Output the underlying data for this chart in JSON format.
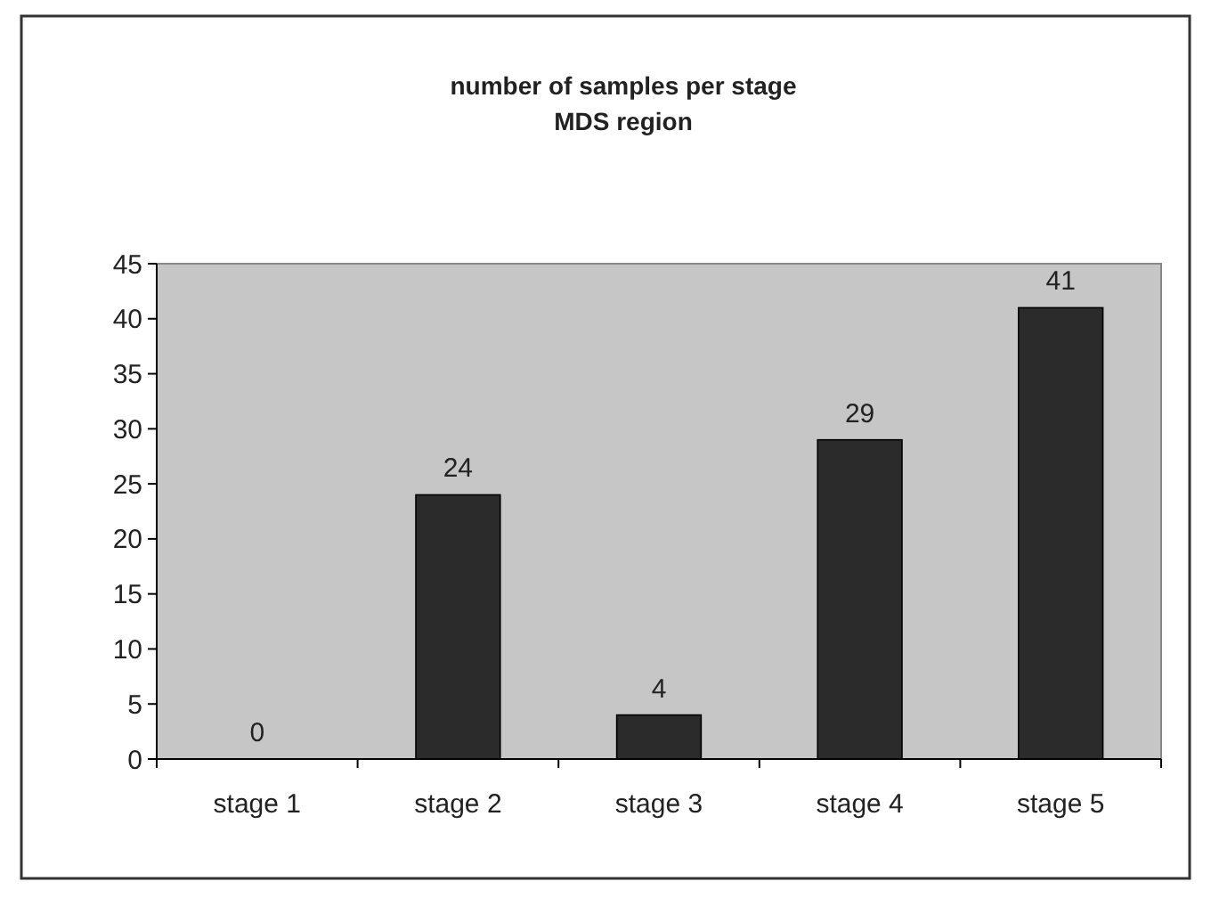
{
  "chart_data": {
    "type": "bar",
    "title": "number of samples per stage",
    "subtitle": "MDS region",
    "categories": [
      "stage 1",
      "stage 2",
      "stage 3",
      "stage 4",
      "stage 5"
    ],
    "values": [
      0,
      24,
      4,
      29,
      41
    ],
    "color": "#2b2b2b",
    "ylim": [
      0,
      45
    ],
    "yticks": [
      0,
      5,
      10,
      15,
      20,
      25,
      30,
      35,
      40,
      45
    ],
    "grid": false,
    "data_labels": true
  }
}
